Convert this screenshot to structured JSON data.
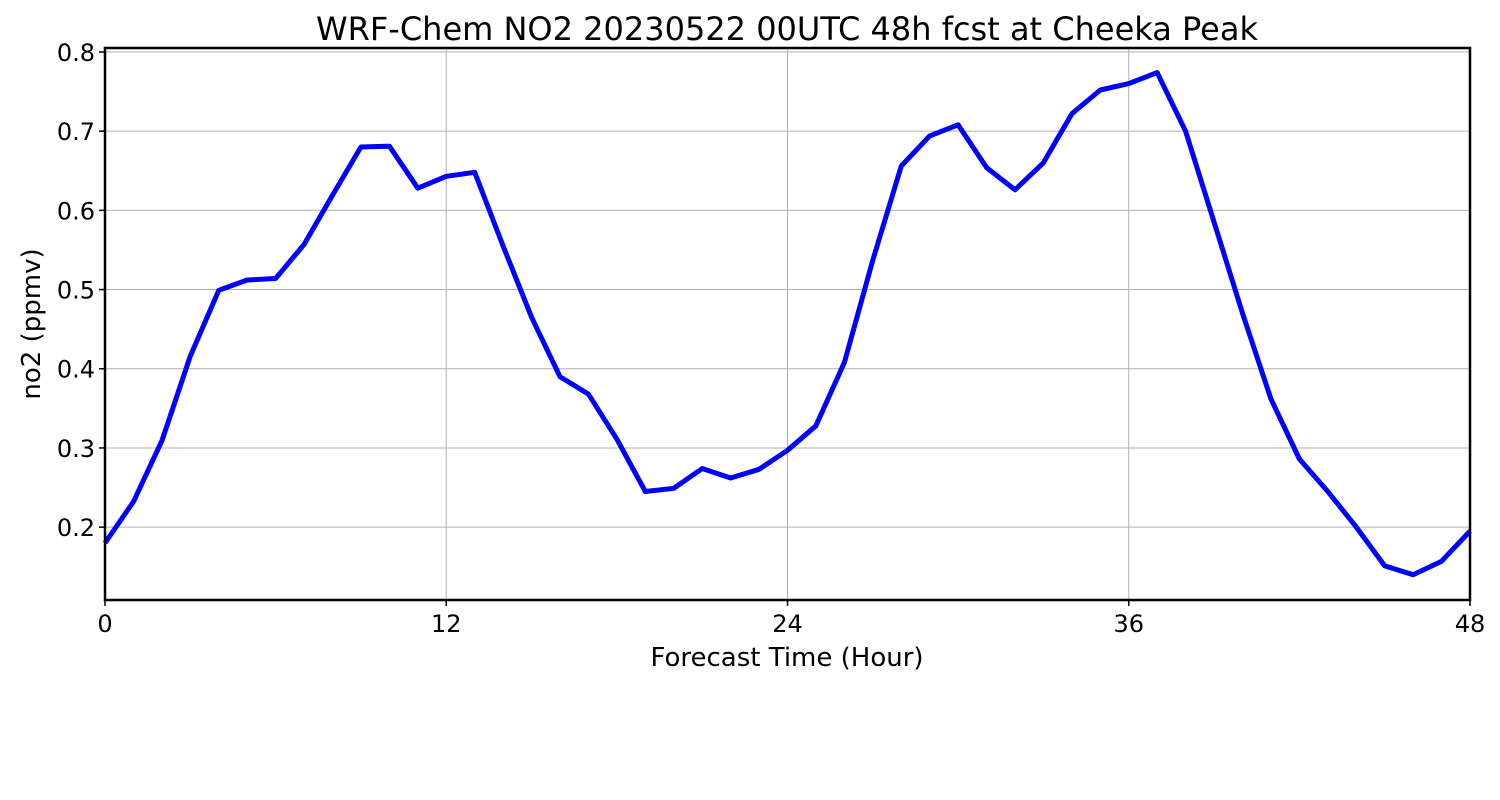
{
  "chart_data": {
    "type": "line",
    "title": "WRF-Chem NO2  20230522 00UTC 48h fcst at Cheeka Peak",
    "xlabel": "Forecast Time (Hour)",
    "ylabel": "no2  (ppmv)",
    "xlim": [
      0,
      48
    ],
    "ylim": [
      0.108,
      0.805
    ],
    "xticks": [
      0,
      12,
      24,
      36,
      48
    ],
    "yticks": [
      0.2,
      0.3,
      0.4,
      0.5,
      0.6,
      0.7,
      0.8
    ],
    "ytick_labels": [
      "0.2",
      "0.3",
      "0.4",
      "0.5",
      "0.6",
      "0.7",
      "0.8"
    ],
    "grid": true,
    "series": [
      {
        "color": "#0000ff",
        "x": [
          0,
          1,
          2,
          3,
          4,
          5,
          6,
          7,
          8,
          9,
          10,
          11,
          12,
          13,
          14,
          15,
          16,
          17,
          18,
          19,
          20,
          21,
          22,
          23,
          24,
          25,
          26,
          27,
          28,
          29,
          30,
          31,
          32,
          33,
          34,
          35,
          36,
          37,
          38,
          39,
          40,
          41,
          42,
          43,
          44,
          45,
          46,
          47,
          48
        ],
        "values": [
          0.18,
          0.232,
          0.309,
          0.416,
          0.499,
          0.512,
          0.514,
          0.557,
          0.619,
          0.68,
          0.681,
          0.628,
          0.643,
          0.648,
          0.555,
          0.465,
          0.39,
          0.368,
          0.311,
          0.245,
          0.249,
          0.274,
          0.262,
          0.273,
          0.297,
          0.328,
          0.408,
          0.537,
          0.656,
          0.694,
          0.708,
          0.654,
          0.626,
          0.66,
          0.722,
          0.752,
          0.76,
          0.774,
          0.7,
          0.585,
          0.47,
          0.362,
          0.286,
          0.245,
          0.2,
          0.151,
          0.14,
          0.157,
          0.195
        ]
      }
    ]
  }
}
